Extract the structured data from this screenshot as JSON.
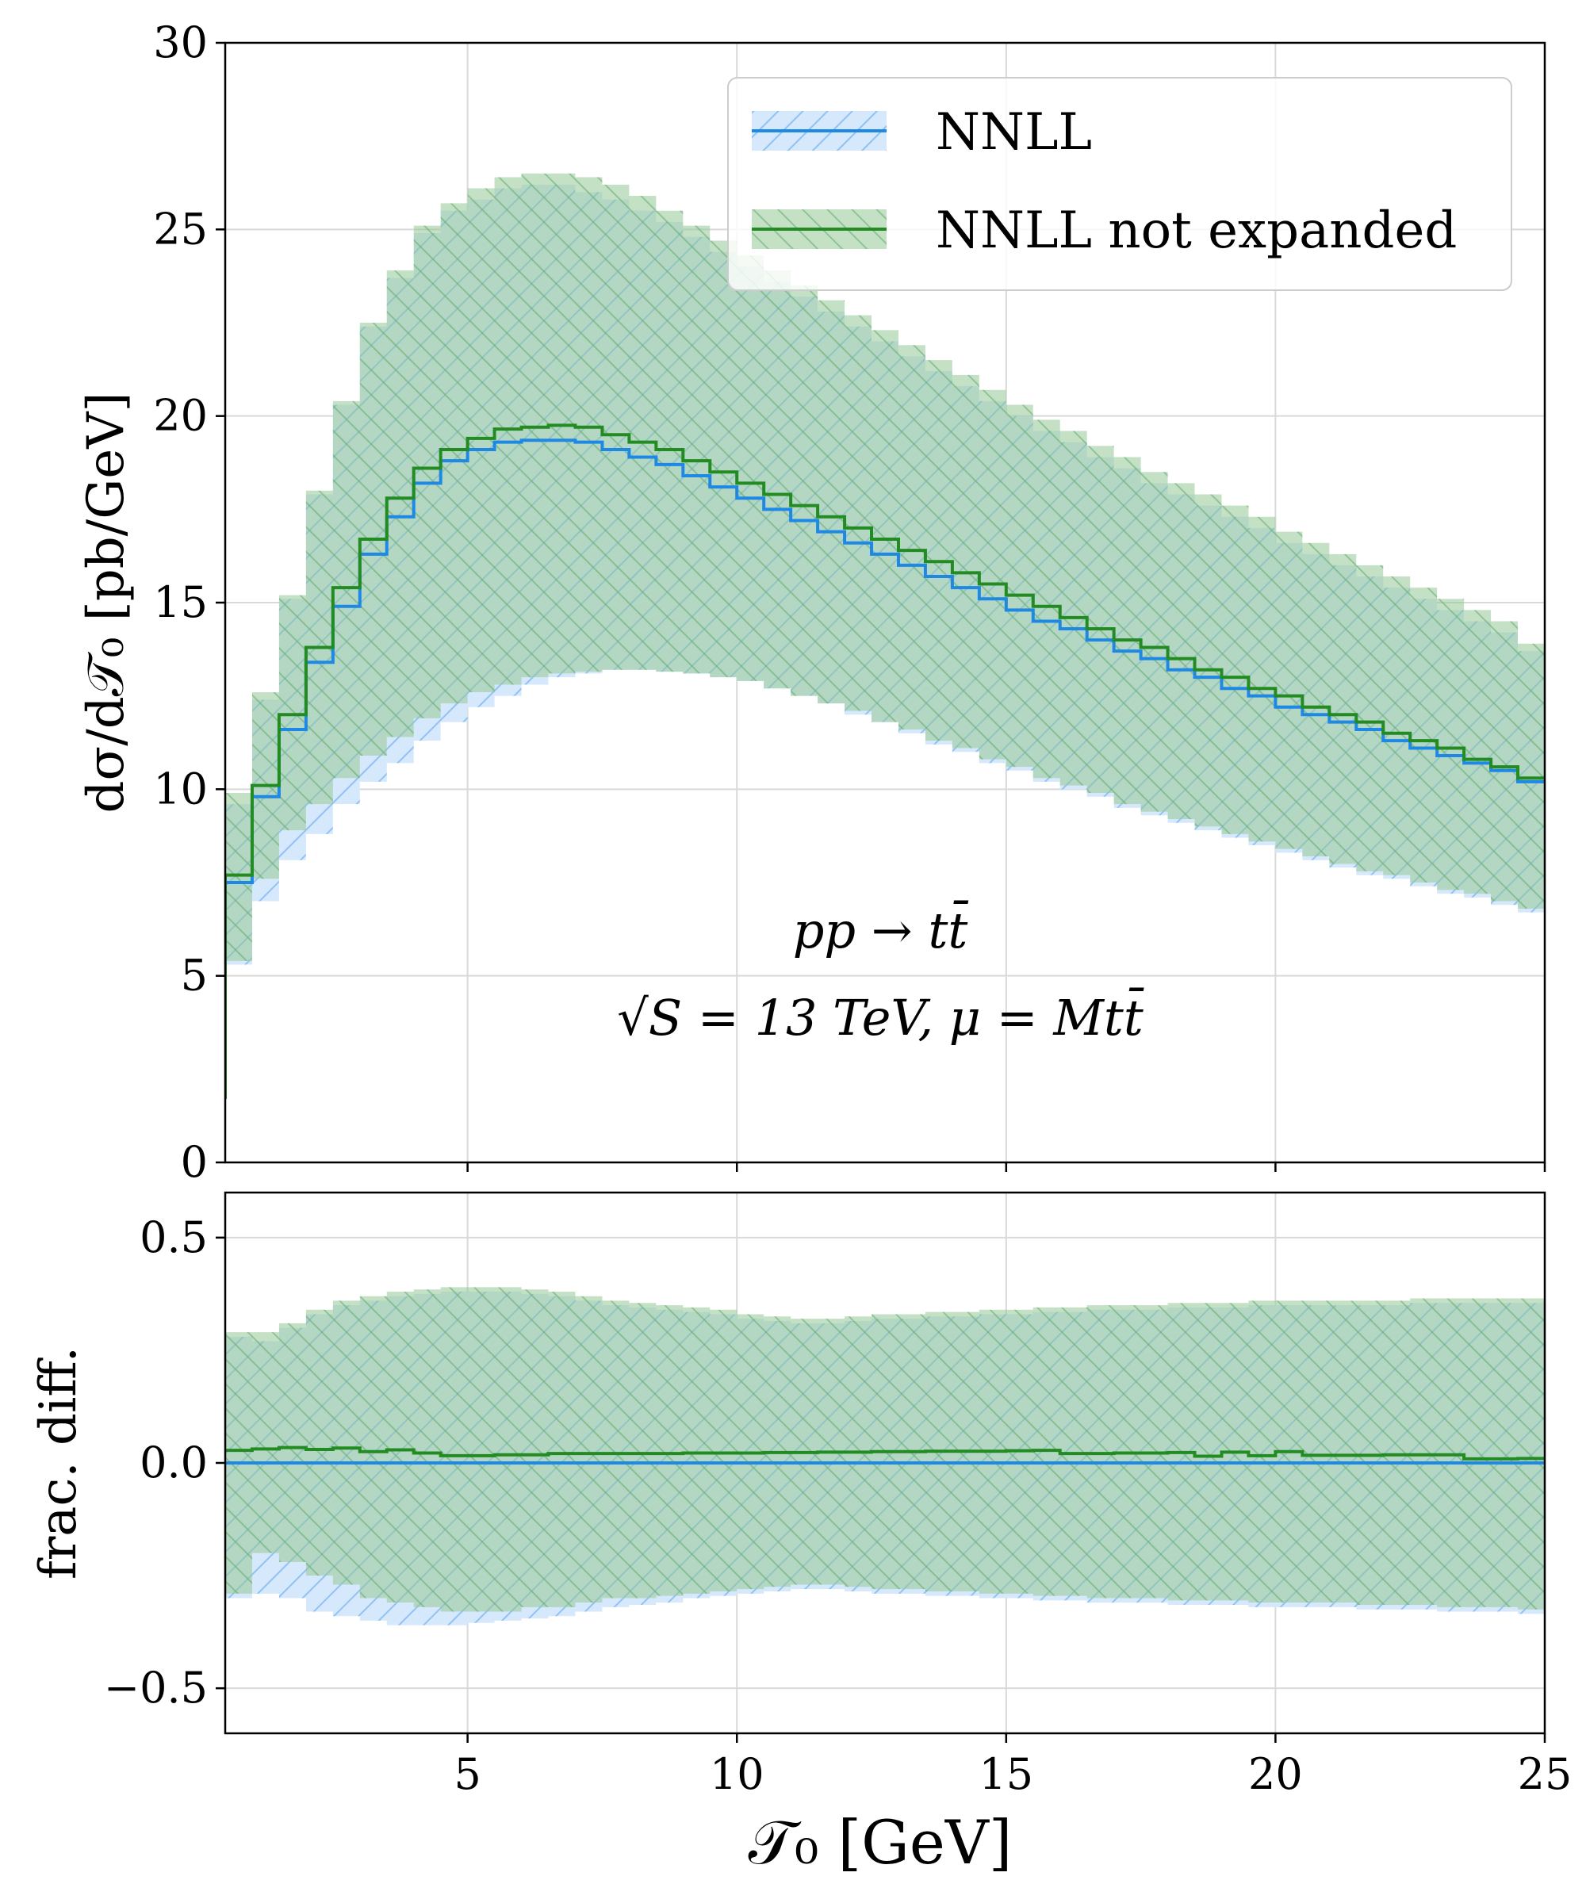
{
  "chart_data": [
    {
      "type": "line",
      "panel": "top",
      "ylabel": "dσ/d𝒯₀   [pb/GeV]",
      "xlim": [
        0.5,
        25
      ],
      "ylim": [
        0,
        30
      ],
      "yticks": [
        0,
        5,
        10,
        15,
        20,
        25,
        30
      ],
      "xticks": [
        5,
        10,
        15,
        20,
        25
      ],
      "grid": true,
      "legend_placement": "top-right",
      "annotations": [
        "pp → tt̄",
        "√S = 13 TeV, μ = Mtt̄"
      ],
      "x_edges": [
        0.5,
        1.0,
        1.5,
        2.0,
        2.5,
        3.0,
        3.5,
        4.0,
        4.5,
        5.0,
        5.5,
        6.0,
        6.5,
        7.0,
        7.5,
        8.0,
        8.5,
        9.0,
        9.5,
        10.0,
        10.5,
        11.0,
        11.5,
        12.0,
        12.5,
        13.0,
        13.5,
        14.0,
        14.5,
        15.0,
        15.5,
        16.0,
        16.5,
        17.0,
        17.5,
        18.0,
        18.5,
        19.0,
        19.5,
        20.0,
        20.5,
        21.0,
        21.5,
        22.0,
        22.5,
        23.0,
        23.5,
        24.0,
        24.5,
        25.0
      ],
      "series": [
        {
          "name": "NNLL",
          "color": "#1e88e5",
          "values": [
            7.5,
            9.8,
            11.6,
            13.4,
            14.9,
            16.3,
            17.3,
            18.2,
            18.8,
            19.1,
            19.3,
            19.35,
            19.35,
            19.3,
            19.1,
            18.9,
            18.7,
            18.4,
            18.1,
            17.8,
            17.5,
            17.2,
            16.9,
            16.6,
            16.3,
            16.0,
            15.7,
            15.4,
            15.1,
            14.8,
            14.5,
            14.3,
            14.0,
            13.7,
            13.5,
            13.2,
            13.0,
            12.7,
            12.5,
            12.2,
            12.0,
            11.8,
            11.6,
            11.3,
            11.1,
            10.9,
            10.7,
            10.5,
            10.2
          ],
          "upper": [
            9.6,
            12.4,
            15.1,
            17.9,
            20.3,
            22.4,
            23.7,
            24.9,
            25.5,
            25.8,
            26.1,
            26.2,
            26.2,
            26.0,
            25.8,
            25.5,
            25.2,
            24.8,
            24.4,
            24.0,
            23.6,
            23.2,
            22.8,
            22.4,
            22.0,
            21.6,
            21.2,
            20.8,
            20.4,
            20.0,
            19.6,
            19.3,
            18.9,
            18.6,
            18.2,
            17.9,
            17.6,
            17.3,
            17.0,
            16.6,
            16.3,
            16.0,
            15.7,
            15.4,
            15.1,
            14.8,
            14.5,
            14.2,
            13.7
          ],
          "lower": [
            5.3,
            7.0,
            8.1,
            8.8,
            9.6,
            10.2,
            10.7,
            11.3,
            11.8,
            12.2,
            12.5,
            12.8,
            13.0,
            13.1,
            13.2,
            13.2,
            13.15,
            13.1,
            13.0,
            12.9,
            12.7,
            12.5,
            12.3,
            12.0,
            11.8,
            11.5,
            11.2,
            11.0,
            10.7,
            10.5,
            10.2,
            10.0,
            9.8,
            9.5,
            9.3,
            9.1,
            8.9,
            8.7,
            8.5,
            8.3,
            8.1,
            7.9,
            7.7,
            7.6,
            7.4,
            7.2,
            7.1,
            6.9,
            6.7
          ]
        },
        {
          "name": "NNLL not expanded",
          "color": "#228b22",
          "values": [
            7.7,
            10.1,
            12.0,
            13.8,
            15.4,
            16.7,
            17.8,
            18.6,
            19.1,
            19.4,
            19.65,
            19.7,
            19.75,
            19.7,
            19.5,
            19.3,
            19.1,
            18.8,
            18.5,
            18.2,
            17.9,
            17.6,
            17.3,
            17.0,
            16.7,
            16.4,
            16.1,
            15.8,
            15.5,
            15.2,
            14.9,
            14.6,
            14.3,
            14.0,
            13.8,
            13.5,
            13.2,
            13.0,
            12.7,
            12.5,
            12.2,
            12.0,
            11.8,
            11.5,
            11.3,
            11.1,
            10.8,
            10.6,
            10.3
          ],
          "upper": [
            9.9,
            12.6,
            15.2,
            18.0,
            20.4,
            22.5,
            23.9,
            25.1,
            25.7,
            26.1,
            26.4,
            26.5,
            26.5,
            26.4,
            26.2,
            25.9,
            25.5,
            25.1,
            24.7,
            24.3,
            23.9,
            23.5,
            23.1,
            22.7,
            22.3,
            21.9,
            21.5,
            21.1,
            20.7,
            20.3,
            19.9,
            19.6,
            19.2,
            18.9,
            18.5,
            18.2,
            17.9,
            17.6,
            17.3,
            16.9,
            16.6,
            16.3,
            16.0,
            15.7,
            15.4,
            15.1,
            14.8,
            14.5,
            13.9
          ],
          "lower": [
            5.4,
            7.6,
            8.9,
            9.6,
            10.3,
            10.9,
            11.4,
            11.9,
            12.3,
            12.6,
            12.8,
            13.0,
            13.1,
            13.15,
            13.2,
            13.2,
            13.15,
            13.1,
            13.0,
            12.9,
            12.7,
            12.5,
            12.3,
            12.1,
            11.8,
            11.6,
            11.3,
            11.1,
            10.8,
            10.6,
            10.3,
            10.1,
            9.9,
            9.6,
            9.4,
            9.2,
            9.0,
            8.8,
            8.6,
            8.4,
            8.2,
            8.0,
            7.8,
            7.7,
            7.5,
            7.3,
            7.2,
            7.0,
            6.8
          ]
        }
      ]
    },
    {
      "type": "line",
      "panel": "bottom",
      "ylabel": "frac. diff.",
      "xlabel": "𝒯₀   [GeV]",
      "xlim": [
        0.5,
        25
      ],
      "ylim": [
        -0.6,
        0.6
      ],
      "yticks": [
        -0.5,
        0.0,
        0.5
      ],
      "ytick_labels": [
        "−0.5",
        "0.0",
        "0.5"
      ],
      "xticks": [
        5,
        10,
        15,
        20,
        25
      ],
      "grid": true,
      "series": [
        {
          "name": "NNLL",
          "color": "#1e88e5",
          "values_const": 0.0,
          "upper": [
            0.28,
            0.27,
            0.3,
            0.33,
            0.35,
            0.36,
            0.37,
            0.375,
            0.38,
            0.38,
            0.38,
            0.375,
            0.37,
            0.36,
            0.35,
            0.345,
            0.34,
            0.335,
            0.33,
            0.32,
            0.315,
            0.31,
            0.31,
            0.315,
            0.32,
            0.32,
            0.325,
            0.325,
            0.33,
            0.33,
            0.335,
            0.335,
            0.34,
            0.34,
            0.34,
            0.345,
            0.345,
            0.345,
            0.35,
            0.35,
            0.35,
            0.35,
            0.35,
            0.35,
            0.355,
            0.355,
            0.355,
            0.355,
            0.355
          ],
          "lower": [
            -0.3,
            -0.29,
            -0.3,
            -0.33,
            -0.34,
            -0.35,
            -0.36,
            -0.36,
            -0.36,
            -0.355,
            -0.35,
            -0.345,
            -0.34,
            -0.33,
            -0.32,
            -0.315,
            -0.31,
            -0.3,
            -0.295,
            -0.29,
            -0.285,
            -0.28,
            -0.28,
            -0.285,
            -0.29,
            -0.29,
            -0.295,
            -0.295,
            -0.3,
            -0.3,
            -0.305,
            -0.305,
            -0.31,
            -0.31,
            -0.31,
            -0.315,
            -0.315,
            -0.315,
            -0.32,
            -0.32,
            -0.32,
            -0.32,
            -0.325,
            -0.325,
            -0.325,
            -0.33,
            -0.33,
            -0.33,
            -0.335
          ]
        },
        {
          "name": "NNLL not expanded",
          "color": "#228b22",
          "values": [
            0.028,
            0.031,
            0.034,
            0.03,
            0.033,
            0.025,
            0.029,
            0.022,
            0.016,
            0.016,
            0.018,
            0.018,
            0.021,
            0.021,
            0.021,
            0.021,
            0.021,
            0.022,
            0.022,
            0.022,
            0.023,
            0.023,
            0.024,
            0.024,
            0.025,
            0.025,
            0.026,
            0.026,
            0.026,
            0.027,
            0.028,
            0.021,
            0.021,
            0.022,
            0.022,
            0.023,
            0.015,
            0.024,
            0.016,
            0.025,
            0.017,
            0.017,
            0.017,
            0.018,
            0.018,
            0.018,
            0.009,
            0.009,
            0.01
          ],
          "upper": [
            0.29,
            0.29,
            0.31,
            0.34,
            0.36,
            0.37,
            0.38,
            0.385,
            0.39,
            0.39,
            0.39,
            0.385,
            0.38,
            0.37,
            0.36,
            0.355,
            0.35,
            0.345,
            0.34,
            0.33,
            0.325,
            0.32,
            0.32,
            0.325,
            0.33,
            0.33,
            0.335,
            0.335,
            0.34,
            0.34,
            0.345,
            0.345,
            0.35,
            0.35,
            0.35,
            0.355,
            0.355,
            0.355,
            0.36,
            0.36,
            0.36,
            0.36,
            0.36,
            0.36,
            0.365,
            0.365,
            0.365,
            0.365,
            0.365
          ],
          "lower": [
            -0.29,
            -0.2,
            -0.22,
            -0.25,
            -0.27,
            -0.3,
            -0.31,
            -0.32,
            -0.33,
            -0.33,
            -0.33,
            -0.32,
            -0.32,
            -0.31,
            -0.3,
            -0.3,
            -0.295,
            -0.29,
            -0.285,
            -0.28,
            -0.275,
            -0.27,
            -0.27,
            -0.275,
            -0.28,
            -0.28,
            -0.285,
            -0.285,
            -0.29,
            -0.29,
            -0.295,
            -0.295,
            -0.3,
            -0.3,
            -0.3,
            -0.305,
            -0.305,
            -0.305,
            -0.31,
            -0.31,
            -0.31,
            -0.31,
            -0.315,
            -0.315,
            -0.315,
            -0.32,
            -0.32,
            -0.32,
            -0.325
          ]
        }
      ]
    }
  ],
  "legend": {
    "items": [
      {
        "label": "NNLL",
        "color": "#1e88e5",
        "fill": "#cfe3fb"
      },
      {
        "label": "NNLL not expanded",
        "color": "#228b22",
        "fill": "#c6e2c6"
      }
    ]
  },
  "annotations": {
    "process": "pp → tt̄",
    "conditions": "√S = 13 TeV, μ = Mtt̄"
  }
}
